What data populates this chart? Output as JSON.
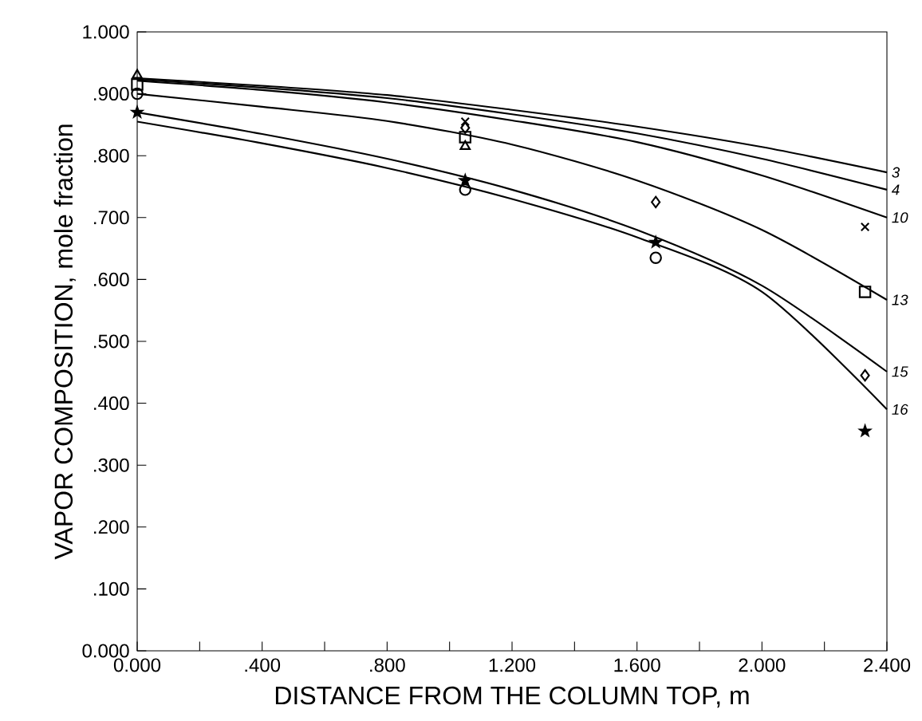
{
  "chart_data": {
    "type": "line",
    "xlabel": "DISTANCE FROM THE COLUMN TOP, m",
    "ylabel": "VAPOR COMPOSITION, mole fraction",
    "xlim": [
      0,
      2.4
    ],
    "ylim": [
      0,
      1
    ],
    "xticks": [
      {
        "value": 0,
        "label": "0.000"
      },
      {
        "value": 0.2,
        "label": null
      },
      {
        "value": 0.4,
        "label": ".400"
      },
      {
        "value": 0.6,
        "label": null
      },
      {
        "value": 0.8,
        "label": ".800"
      },
      {
        "value": 1.0,
        "label": null
      },
      {
        "value": 1.2,
        "label": "1.200"
      },
      {
        "value": 1.4,
        "label": null
      },
      {
        "value": 1.6,
        "label": "1.600"
      },
      {
        "value": 1.8,
        "label": null
      },
      {
        "value": 2.0,
        "label": "2.000"
      },
      {
        "value": 2.2,
        "label": null
      },
      {
        "value": 2.4,
        "label": "2.400"
      }
    ],
    "yticks": [
      {
        "value": 0,
        "label": "0.000"
      },
      {
        "value": 0.1,
        "label": ".100"
      },
      {
        "value": 0.2,
        "label": ".200"
      },
      {
        "value": 0.3,
        "label": ".300"
      },
      {
        "value": 0.4,
        "label": ".400"
      },
      {
        "value": 0.5,
        "label": ".500"
      },
      {
        "value": 0.6,
        "label": ".600"
      },
      {
        "value": 0.7,
        "label": ".700"
      },
      {
        "value": 0.8,
        "label": ".800"
      },
      {
        "value": 0.9,
        "label": ".900"
      },
      {
        "value": 1.0,
        "label": "1.000"
      }
    ],
    "marker": "none",
    "line_style": "solid",
    "series": [
      {
        "name": "3",
        "color": "#000000",
        "x": [
          0,
          0.4,
          0.8,
          1.2,
          1.6,
          2.0,
          2.4
        ],
        "values": [
          0.925,
          0.913,
          0.898,
          0.874,
          0.847,
          0.814,
          0.773
        ]
      },
      {
        "name": "4",
        "color": "#000000",
        "x": [
          0,
          0.4,
          0.8,
          1.2,
          1.6,
          2.0,
          2.4
        ],
        "values": [
          0.923,
          0.91,
          0.893,
          0.867,
          0.836,
          0.795,
          0.745
        ]
      },
      {
        "name": "10",
        "color": "#000000",
        "x": [
          0,
          0.4,
          0.8,
          1.2,
          1.6,
          2.0,
          2.4
        ],
        "values": [
          0.921,
          0.906,
          0.886,
          0.857,
          0.822,
          0.768,
          0.7
        ]
      },
      {
        "name": "13",
        "color": "#000000",
        "x": [
          0,
          0.4,
          0.8,
          1.2,
          1.6,
          2.0,
          2.4
        ],
        "values": [
          0.9,
          0.879,
          0.856,
          0.818,
          0.76,
          0.68,
          0.567
        ]
      },
      {
        "name": "15",
        "color": "#000000",
        "x": [
          0,
          0.4,
          0.8,
          1.2,
          1.6,
          2.0,
          2.4
        ],
        "values": [
          0.87,
          0.835,
          0.795,
          0.745,
          0.68,
          0.59,
          0.451
        ]
      },
      {
        "name": "16",
        "color": "#000000",
        "x": [
          0,
          0.4,
          0.8,
          1.2,
          1.6,
          2.0,
          2.4
        ],
        "values": [
          0.855,
          0.82,
          0.78,
          0.73,
          0.668,
          0.58,
          0.39
        ]
      },
      {
        "type": "scatter",
        "marker": "diamond",
        "color": "#000000",
        "x": [
          1.05,
          1.66,
          2.33
        ],
        "values": [
          0.845,
          0.725,
          0.445
        ]
      },
      {
        "type": "scatter",
        "marker": "star",
        "color": "#000000",
        "x": [
          0,
          1.05,
          1.66,
          2.33
        ],
        "values": [
          0.87,
          0.76,
          0.66,
          0.355
        ]
      },
      {
        "type": "scatter",
        "marker": "cross",
        "color": "#000000",
        "x": [
          1.05,
          2.33
        ],
        "values": [
          0.855,
          0.685
        ]
      },
      {
        "type": "scatter",
        "marker": "square",
        "color": "#000000",
        "x": [
          0,
          1.05,
          2.33
        ],
        "values": [
          0.915,
          0.83,
          0.58
        ]
      },
      {
        "type": "scatter",
        "marker": "circle",
        "color": "#000000",
        "x": [
          0,
          1.05,
          1.66
        ],
        "values": [
          0.9,
          0.745,
          0.635
        ]
      },
      {
        "type": "scatter",
        "marker": "triangle",
        "color": "#000000",
        "x": [
          0,
          1.05
        ],
        "values": [
          0.93,
          0.815
        ]
      }
    ]
  }
}
